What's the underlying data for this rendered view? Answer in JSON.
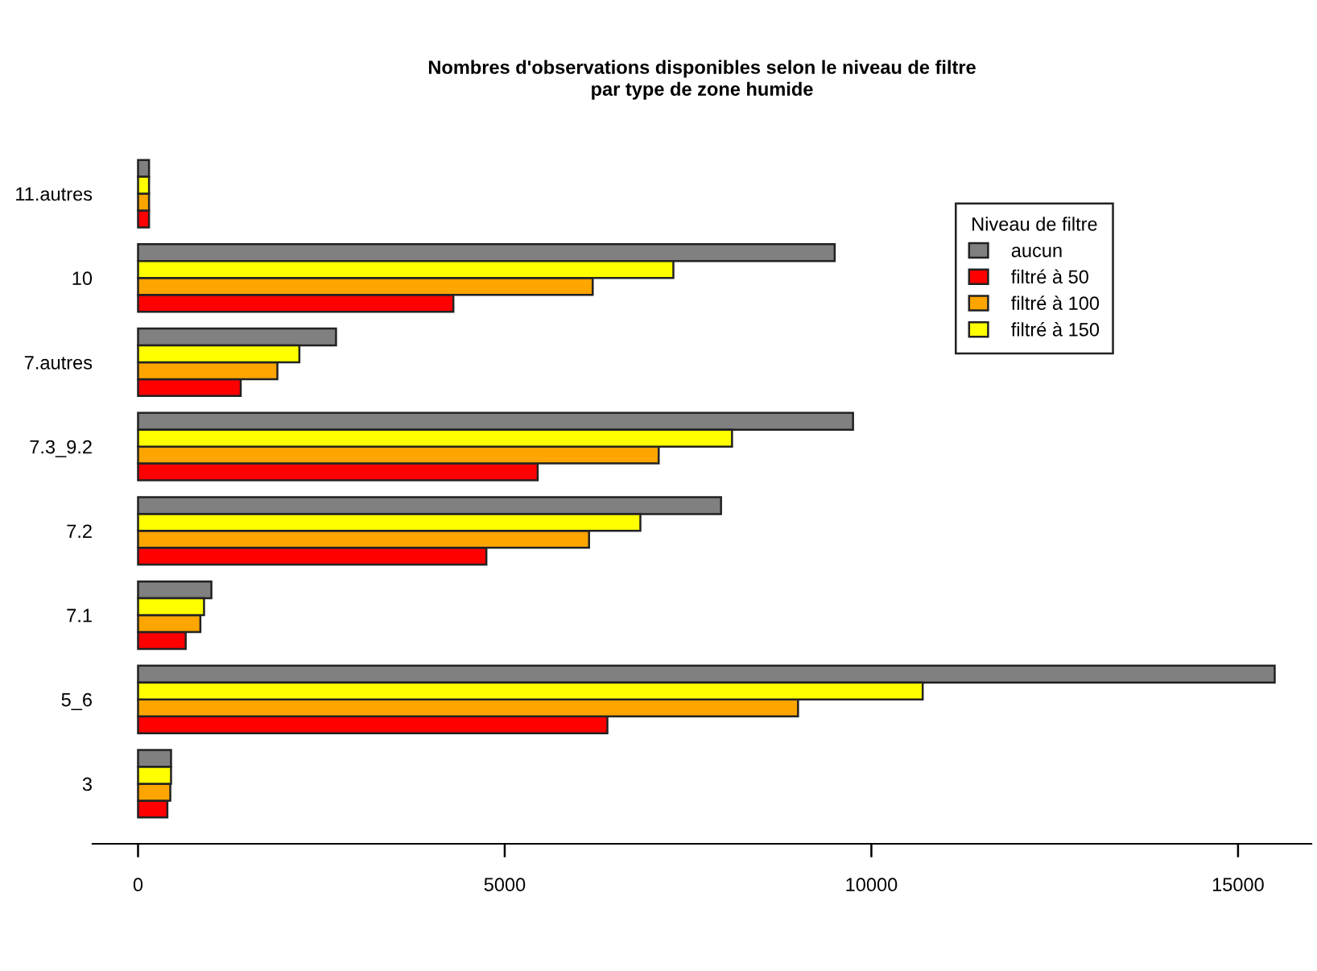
{
  "chart_data": {
    "type": "bar",
    "orientation": "horizontal",
    "title": "Nombres d'observations disponibles selon le niveau de filtre\npar type de zone humide",
    "legend_title": "Niveau de filtre",
    "legend": "top right",
    "grid": false,
    "categories": [
      "11.autres",
      "10",
      "7.autres",
      "7.3_9.2",
      "7.2",
      "7.1",
      "5_6",
      "3"
    ],
    "series": [
      {
        "name": "aucun",
        "color": "#808080",
        "values": [
          150,
          9500,
          2700,
          9750,
          7950,
          1000,
          15500,
          450
        ]
      },
      {
        "name": "filtré à 50",
        "color": "#ff0000",
        "values": [
          150,
          4300,
          1400,
          5450,
          4750,
          650,
          6400,
          400
        ]
      },
      {
        "name": "filtré à 100",
        "color": "#ffa500",
        "values": [
          150,
          6200,
          1900,
          7100,
          6150,
          850,
          9000,
          440
        ]
      },
      {
        "name": "filtré à 150",
        "color": "#ffff00",
        "values": [
          150,
          7300,
          2200,
          8100,
          6850,
          900,
          10700,
          450
        ]
      }
    ],
    "xlim": [
      -620,
      16000
    ],
    "xticks": [
      0,
      5000,
      10000,
      15000
    ]
  }
}
